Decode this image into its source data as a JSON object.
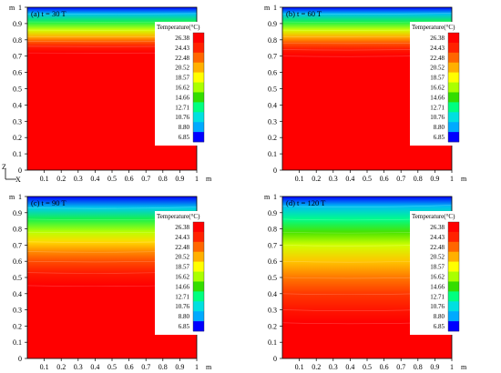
{
  "chart_data": [
    {
      "type": "heatmap",
      "panel": "a",
      "title": "(a) t = 30 T",
      "x_axis": {
        "label": "m",
        "range": [
          0,
          1
        ],
        "ticks": [
          "0.1",
          "0.2",
          "0.3",
          "0.4",
          "0.5",
          "0.6",
          "0.7",
          "0.8",
          "0.9",
          "1"
        ]
      },
      "y_axis": {
        "label": "m",
        "range": [
          0,
          1
        ],
        "ticks": [
          "0",
          "0.1",
          "0.2",
          "0.3",
          "0.4",
          "0.5",
          "0.6",
          "0.7",
          "0.8",
          "0.9",
          "1"
        ]
      },
      "temperature_profile": [
        {
          "z": 1.0,
          "t": 6.85
        },
        {
          "z": 0.96,
          "t": 9.5
        },
        {
          "z": 0.91,
          "t": 13.5
        },
        {
          "z": 0.86,
          "t": 17.5
        },
        {
          "z": 0.82,
          "t": 20.5
        },
        {
          "z": 0.79,
          "t": 22.8
        },
        {
          "z": 0.76,
          "t": 24.8
        },
        {
          "z": 0.72,
          "t": 26.38
        },
        {
          "z": 0.0,
          "t": 26.38
        }
      ],
      "legend": {
        "title": "Temperature(°C)"
      }
    },
    {
      "type": "heatmap",
      "panel": "b",
      "title": "(b) t = 60 T",
      "x_axis": {
        "label": "m",
        "range": [
          0,
          1
        ],
        "ticks": [
          "0.1",
          "0.2",
          "0.3",
          "0.4",
          "0.5",
          "0.6",
          "0.7",
          "0.8",
          "0.9",
          "1"
        ]
      },
      "y_axis": {
        "label": "m",
        "range": [
          0,
          1
        ],
        "ticks": [
          "0",
          "0.1",
          "0.2",
          "0.3",
          "0.4",
          "0.5",
          "0.6",
          "0.7",
          "0.8",
          "0.9",
          "1"
        ]
      },
      "temperature_profile": [
        {
          "z": 1.0,
          "t": 6.85
        },
        {
          "z": 0.96,
          "t": 9.5
        },
        {
          "z": 0.91,
          "t": 13.5
        },
        {
          "z": 0.86,
          "t": 17.5
        },
        {
          "z": 0.82,
          "t": 20.5
        },
        {
          "z": 0.78,
          "t": 23.0
        },
        {
          "z": 0.74,
          "t": 25.0
        },
        {
          "z": 0.7,
          "t": 26.38
        },
        {
          "z": 0.0,
          "t": 26.38
        }
      ],
      "legend": {
        "title": "Temperature(°C)"
      }
    },
    {
      "type": "heatmap",
      "panel": "c",
      "title": "(c) t = 90 T",
      "x_axis": {
        "label": "m",
        "range": [
          0,
          1
        ],
        "ticks": [
          "0.1",
          "0.2",
          "0.3",
          "0.4",
          "0.5",
          "0.6",
          "0.7",
          "0.8",
          "0.9",
          "1"
        ]
      },
      "y_axis": {
        "label": "m",
        "range": [
          0,
          1
        ],
        "ticks": [
          "0",
          "0.1",
          "0.2",
          "0.3",
          "0.4",
          "0.5",
          "0.6",
          "0.7",
          "0.8",
          "0.9",
          "1"
        ]
      },
      "temperature_profile": [
        {
          "z": 1.0,
          "t": 6.85
        },
        {
          "z": 0.93,
          "t": 10.0
        },
        {
          "z": 0.86,
          "t": 13.5
        },
        {
          "z": 0.78,
          "t": 17.0
        },
        {
          "z": 0.72,
          "t": 19.5
        },
        {
          "z": 0.66,
          "t": 21.5
        },
        {
          "z": 0.6,
          "t": 23.2
        },
        {
          "z": 0.53,
          "t": 24.8
        },
        {
          "z": 0.45,
          "t": 26.38
        },
        {
          "z": 0.0,
          "t": 26.38
        }
      ],
      "legend": {
        "title": "Temperature(°C)"
      }
    },
    {
      "type": "heatmap",
      "panel": "d",
      "title": "(d) t = 120 T",
      "x_axis": {
        "label": "m",
        "range": [
          0,
          1
        ],
        "ticks": [
          "0.1",
          "0.2",
          "0.3",
          "0.4",
          "0.5",
          "0.6",
          "0.7",
          "0.8",
          "0.9",
          "1"
        ]
      },
      "y_axis": {
        "label": "m",
        "range": [
          0,
          1
        ],
        "ticks": [
          "0",
          "0.1",
          "0.2",
          "0.3",
          "0.4",
          "0.5",
          "0.6",
          "0.7",
          "0.8",
          "0.9",
          "1"
        ]
      },
      "temperature_profile": [
        {
          "z": 1.0,
          "t": 6.85
        },
        {
          "z": 0.94,
          "t": 9.5
        },
        {
          "z": 0.86,
          "t": 12.5
        },
        {
          "z": 0.78,
          "t": 15.0
        },
        {
          "z": 0.7,
          "t": 17.5
        },
        {
          "z": 0.6,
          "t": 20.0
        },
        {
          "z": 0.5,
          "t": 22.0
        },
        {
          "z": 0.4,
          "t": 23.8
        },
        {
          "z": 0.3,
          "t": 25.2
        },
        {
          "z": 0.22,
          "t": 26.38
        },
        {
          "z": 0.0,
          "t": 26.38
        }
      ],
      "legend": {
        "title": "Temperature(°C)"
      }
    }
  ],
  "legend_levels": [
    "26.38",
    "24.43",
    "22.48",
    "20.52",
    "18.57",
    "16.62",
    "14.66",
    "12.71",
    "10.76",
    "8.80",
    "6.85"
  ],
  "temperature_range": [
    6.85,
    26.38
  ],
  "axis_indicator": {
    "z": "Z",
    "x": "X"
  },
  "colormap": [
    "#0000ff",
    "#00aaff",
    "#00e0e0",
    "#00ff80",
    "#33dd00",
    "#aaff00",
    "#ffff00",
    "#ffb000",
    "#ff6600",
    "#ff2200",
    "#ff0000"
  ]
}
